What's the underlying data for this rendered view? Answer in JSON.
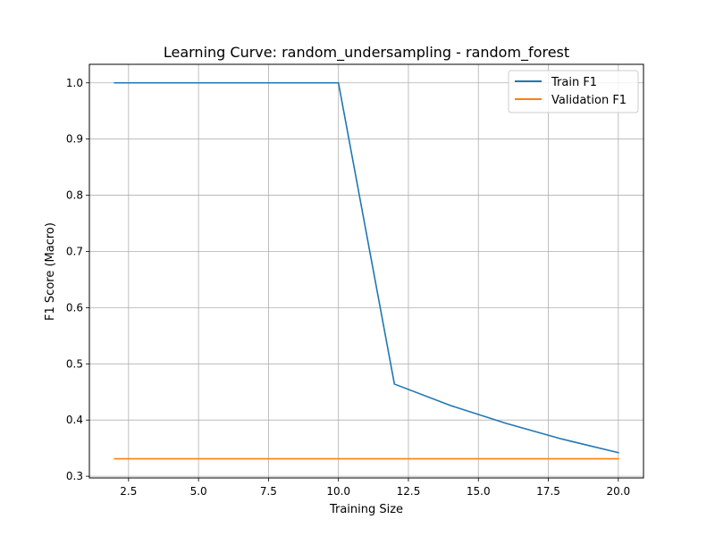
{
  "chart_data": {
    "type": "line",
    "title": "Learning Curve: random_undersampling - random_forest",
    "xlabel": "Training Size",
    "ylabel": "F1 Score (Macro)",
    "xlim": [
      1.1,
      20.9
    ],
    "ylim": [
      0.297,
      1.033
    ],
    "xticks": [
      2.5,
      5.0,
      7.5,
      10.0,
      12.5,
      15.0,
      17.5,
      20.0
    ],
    "xtick_labels": [
      "2.5",
      "5.0",
      "7.5",
      "10.0",
      "12.5",
      "15.0",
      "17.5",
      "20.0"
    ],
    "yticks": [
      0.3,
      0.4,
      0.5,
      0.6,
      0.7,
      0.8,
      0.9,
      1.0
    ],
    "ytick_labels": [
      "0.3",
      "0.4",
      "0.5",
      "0.6",
      "0.7",
      "0.8",
      "0.9",
      "1.0"
    ],
    "grid": true,
    "legend_position": "top-right",
    "series": [
      {
        "name": "Train F1",
        "color": "#1f77b4",
        "x": [
          2,
          4,
          6,
          8,
          10,
          12,
          14,
          16,
          18,
          20
        ],
        "y": [
          1.0,
          1.0,
          1.0,
          1.0,
          1.0,
          0.464,
          0.426,
          0.394,
          0.366,
          0.342
        ]
      },
      {
        "name": "Validation F1",
        "color": "#ff7f0e",
        "x": [
          2,
          4,
          6,
          8,
          10,
          12,
          14,
          16,
          18,
          20
        ],
        "y": [
          0.331,
          0.331,
          0.331,
          0.331,
          0.331,
          0.331,
          0.331,
          0.331,
          0.331,
          0.331
        ]
      }
    ]
  }
}
